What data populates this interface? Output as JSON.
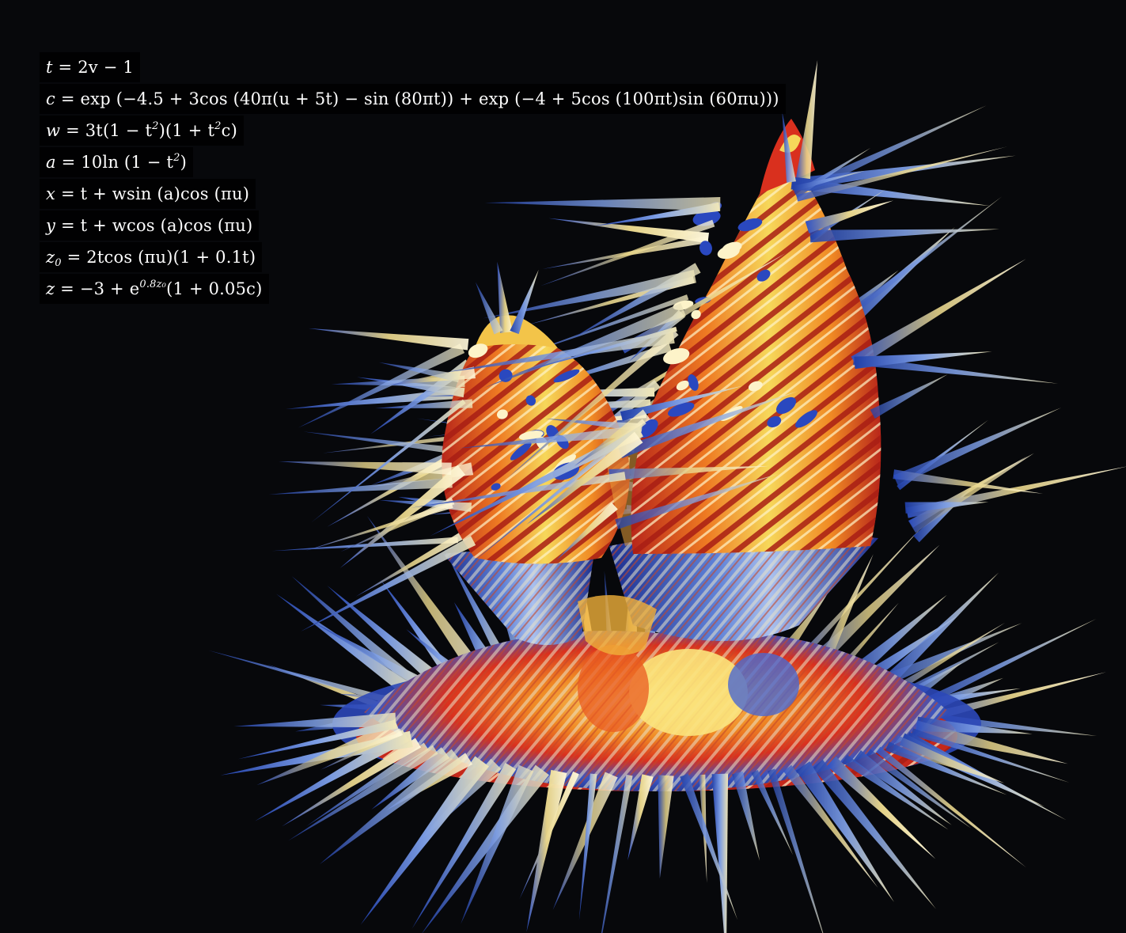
{
  "equations": {
    "t": {
      "lhs": "t",
      "rhs": "= 2v − 1"
    },
    "c": {
      "lhs": "c",
      "rhs": "= exp (−4.5 + 3cos (40π(u + 5t) − sin (80πt)) + exp (−4 + 5cos (100πt)sin (60πu)))"
    },
    "w": {
      "lhs": "w",
      "rhs_a": "= 3t(1 − t",
      "sup1": "2",
      "rhs_b": ")(1 + t",
      "sup2": "2",
      "rhs_c": "c)"
    },
    "a": {
      "lhs": "a",
      "rhs_a": "= 10ln (1 − t",
      "sup1": "2",
      "rhs_b": ")"
    },
    "x": {
      "lhs": "x",
      "rhs": "= t + wsin (a)cos (πu)"
    },
    "y": {
      "lhs": "y",
      "rhs": "= t + wcos (a)cos (πu)"
    },
    "z0": {
      "lhs": "z",
      "sub": "0",
      "rhs": "= 2tcos (πu)(1 + 0.1t)"
    },
    "z": {
      "lhs": "z",
      "rhs_a": "= −3 + e",
      "sup": "0.8z₀",
      "rhs_b": "(1 + 0.05c)"
    }
  },
  "palette": {
    "background": "#07080b",
    "red": "#d9301e",
    "orange": "#f08a24",
    "yellow": "#f3d451",
    "cream": "#fdf3c9",
    "blue": "#2d4fc4",
    "light_blue": "#8fb0ec"
  }
}
